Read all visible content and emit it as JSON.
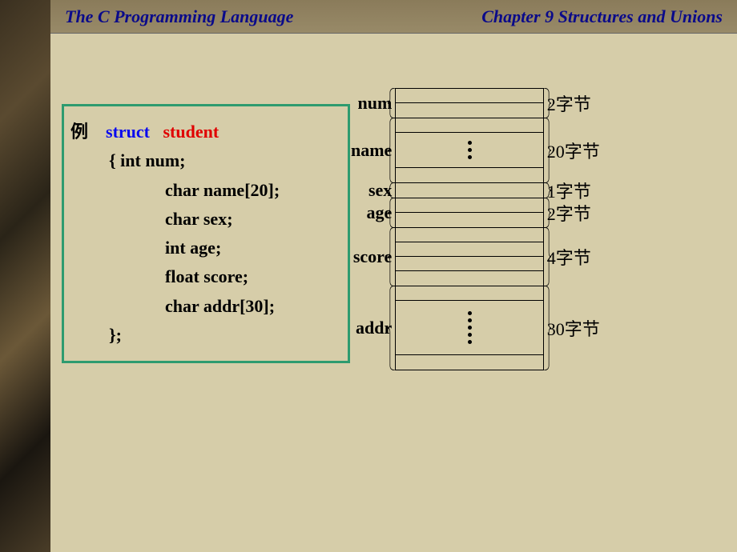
{
  "header": {
    "left": "The C Programming Language",
    "right": "Chapter 9 Structures  and Unions"
  },
  "colors": {
    "slide_bg": "#d6cda9",
    "header_bg": "#988a68",
    "header_text": "#0a0a8a",
    "codebox_border": "#2e9b6f",
    "struct_keyword": "#0a0aee",
    "struct_name": "#e00000",
    "text": "#000000"
  },
  "code": {
    "example_label": "例",
    "keyword": "struct",
    "typename": "student",
    "open_brace_line": "{      int num;",
    "members": [
      "char  name[20];",
      "char sex;",
      "int age;",
      "float score;",
      "char addr[30];"
    ],
    "close": "};"
  },
  "memory": [
    {
      "name": "num",
      "label": "num",
      "cells": 2,
      "ellipsis": false,
      "size": "2字节"
    },
    {
      "name": "name",
      "label": "name",
      "cells": 1,
      "ellipsis": true,
      "dots": 3,
      "size": "20字节"
    },
    {
      "name": "sex",
      "label": "sex",
      "cells": 1,
      "ellipsis": false,
      "size": "1字节"
    },
    {
      "name": "age",
      "label": "age",
      "cells": 2,
      "ellipsis": false,
      "size": "2字节"
    },
    {
      "name": "score",
      "label": "score",
      "cells": 4,
      "ellipsis": false,
      "size": "4字节"
    },
    {
      "name": "addr",
      "label": "addr",
      "cells": 1,
      "ellipsis": true,
      "dots": 5,
      "size": "30字节"
    }
  ]
}
